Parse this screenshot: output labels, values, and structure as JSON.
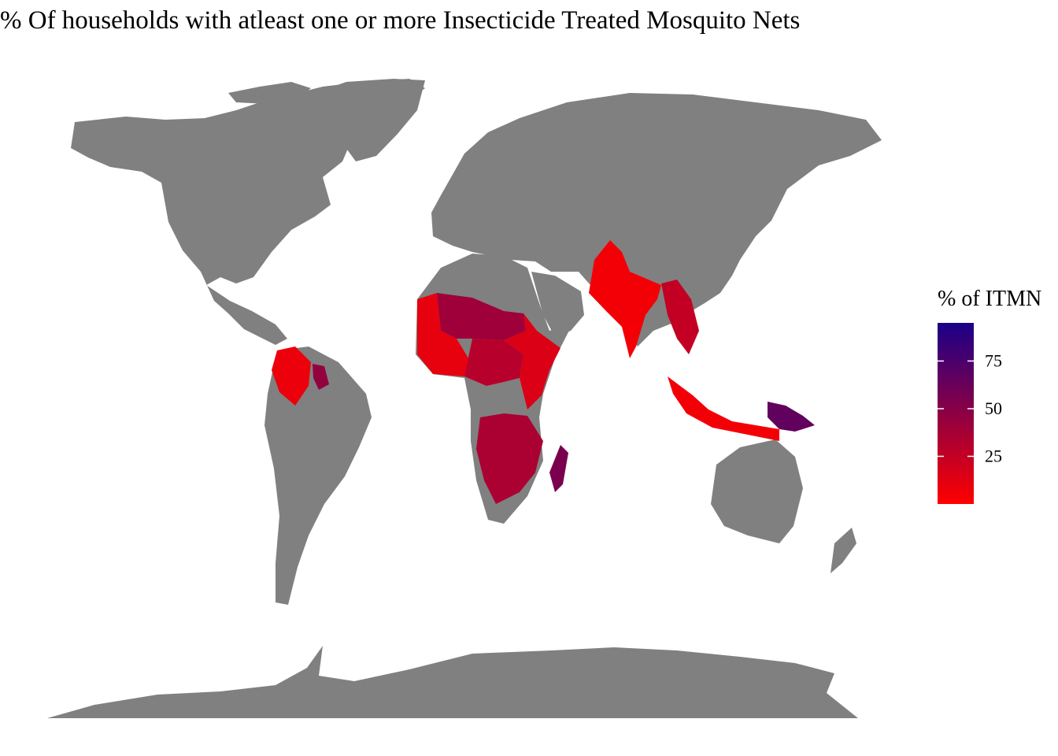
{
  "title": "% Of households with atleast one or more Insecticide Treated Mosquito Nets",
  "colors": {
    "land": "#808080",
    "background": "#ffffff",
    "scale_low": "#ff0000",
    "scale_high": "#1a0088"
  },
  "legend": {
    "title": "% of ITMN",
    "limits": [
      0,
      95
    ],
    "breaks": [
      25,
      50,
      75
    ],
    "break_labels": [
      "25",
      "50",
      "75"
    ]
  },
  "map_data": {
    "type": "choropleth",
    "variable": "% of ITMN",
    "shaded_regions": [
      {
        "region": "west-africa",
        "value": 10
      },
      {
        "region": "sahel",
        "value": 40
      },
      {
        "region": "central-africa",
        "value": 30
      },
      {
        "region": "east-africa",
        "value": 15
      },
      {
        "region": "southern-africa",
        "value": 35
      },
      {
        "region": "madagascar",
        "value": 55
      },
      {
        "region": "india",
        "value": 5
      },
      {
        "region": "southeast-asia",
        "value": 25
      },
      {
        "region": "indonesia",
        "value": 5
      },
      {
        "region": "papua-new-guinea",
        "value": 65
      },
      {
        "region": "northern-south-america",
        "value": 8
      },
      {
        "region": "guianas",
        "value": 45
      }
    ]
  }
}
